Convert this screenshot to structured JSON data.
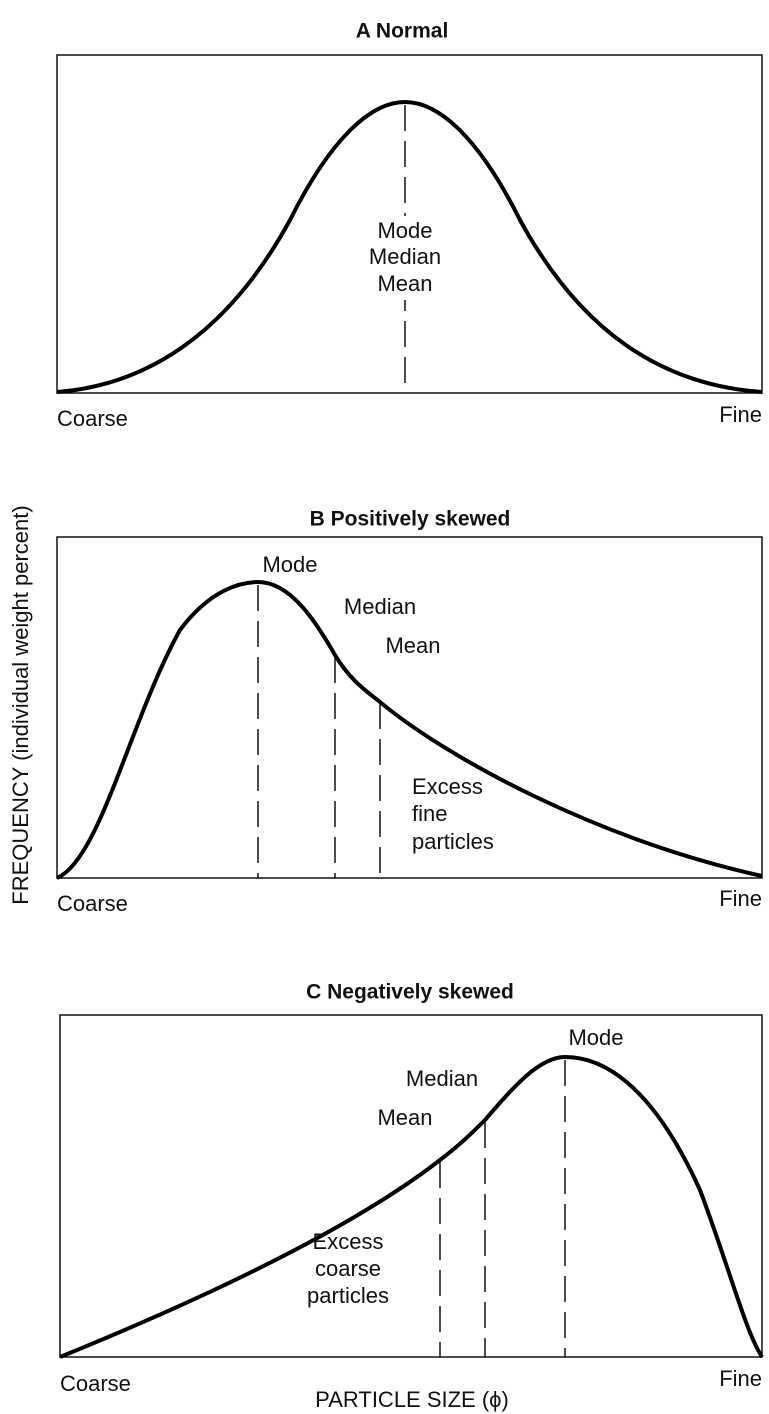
{
  "y_axis_label": "FREQUENCY (individual weight percent)",
  "x_axis_label": "PARTICLE SIZE (ϕ)",
  "panels": [
    {
      "title": "A  Normal",
      "labels": [
        "Mode",
        "Median",
        "Mean"
      ],
      "left": "Coarse",
      "right": "Fine"
    },
    {
      "title": "B  Positively skewed",
      "labels": [
        "Mode",
        "Median",
        "Mean"
      ],
      "note": [
        "Excess",
        "fine",
        "particles"
      ],
      "left": "Coarse",
      "right": "Fine"
    },
    {
      "title": "C  Negatively skewed",
      "labels": [
        "Mode",
        "Median",
        "Mean"
      ],
      "note": [
        "Excess",
        "coarse",
        "particles"
      ],
      "left": "Coarse",
      "right": "Fine"
    }
  ]
}
